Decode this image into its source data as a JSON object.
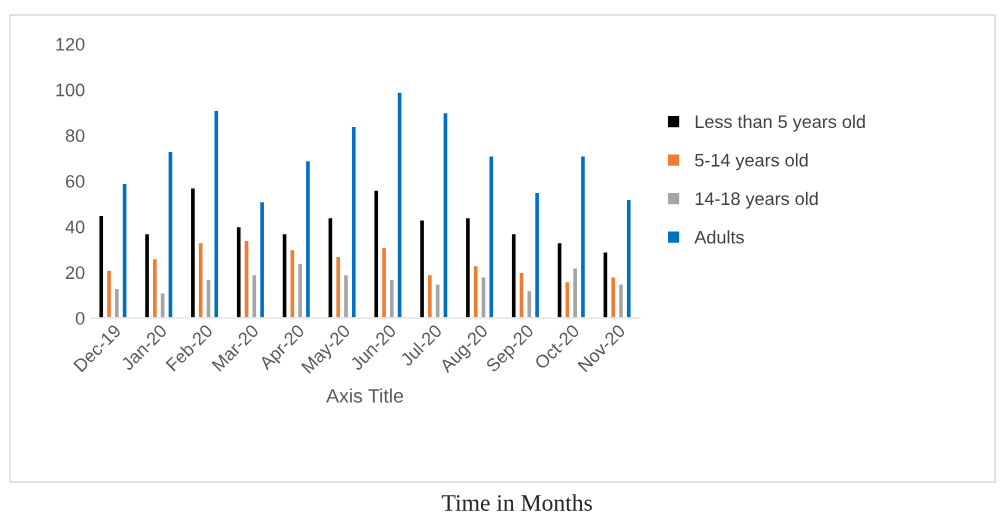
{
  "chart_data": {
    "type": "bar",
    "xlabel": "Axis Title",
    "categories": [
      "Dec-19",
      "Jan-20",
      "Feb-20",
      "Mar-20",
      "Apr-20",
      "May-20",
      "Jun-20",
      "Jul-20",
      "Aug-20",
      "Sep-20",
      "Oct-20",
      "Nov-20"
    ],
    "series": [
      {
        "name": "Less than 5 years old",
        "color": "#000000",
        "values": [
          45,
          37,
          57,
          40,
          37,
          44,
          56,
          43,
          44,
          37,
          33,
          29
        ]
      },
      {
        "name": "5-14 years old",
        "color": "#ed7d31",
        "values": [
          21,
          26,
          33,
          34,
          30,
          27,
          31,
          19,
          23,
          20,
          16,
          18
        ]
      },
      {
        "name": "14-18 years old",
        "color": "#a5a5a5",
        "values": [
          13,
          11,
          17,
          19,
          24,
          19,
          17,
          15,
          18,
          12,
          22,
          15
        ]
      },
      {
        "name": "Adults",
        "color": "#0070c0",
        "values": [
          59,
          73,
          91,
          51,
          69,
          84,
          99,
          90,
          71,
          55,
          71,
          52
        ]
      }
    ],
    "ylim": [
      0,
      120
    ],
    "yticks": [
      0,
      20,
      40,
      60,
      80,
      100,
      120
    ],
    "grid": false,
    "legend": "right",
    "annotations": [
      "Time in Months"
    ]
  }
}
